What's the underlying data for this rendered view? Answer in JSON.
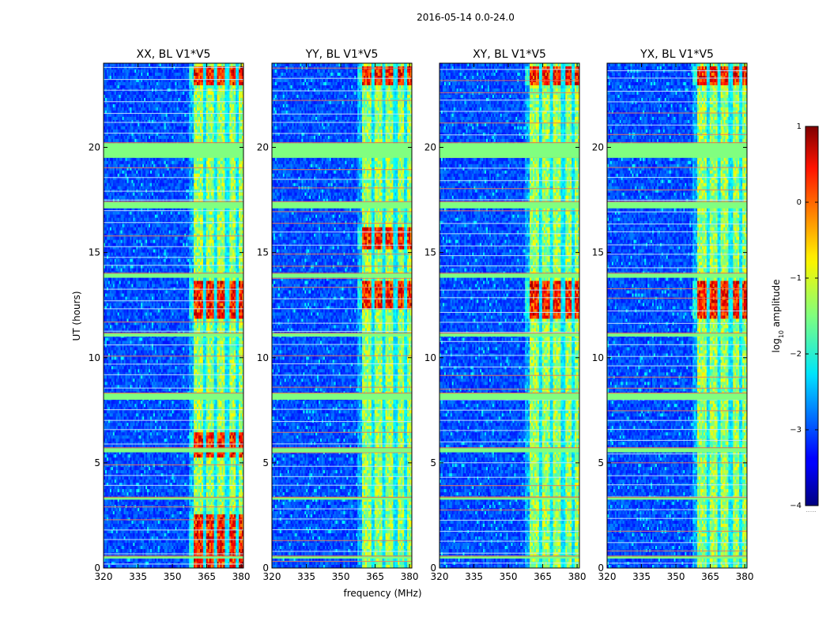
{
  "suptitle": "2016-05-14 0.0-24.0",
  "xlabel": "frequency (MHz)",
  "ylabel": "UT (hours)",
  "colorbar_label": "log10 amplitude",
  "colorbar_label_base": "log",
  "colorbar_label_sub": "10",
  "colorbar_label_rest": " amplitude",
  "colorbar_ticks": [
    "1",
    "0",
    "−1",
    "−2",
    "−3",
    "−4"
  ],
  "colorbar_dots": "......",
  "chart_data": {
    "type": "heatmap",
    "colormap": "jet",
    "color_range": [
      -4,
      1
    ],
    "x_range": [
      320,
      381
    ],
    "y_range": [
      0,
      24
    ],
    "x_ticks": [
      "320",
      "335",
      "350",
      "365",
      "380"
    ],
    "y_ticks": [
      "0",
      "5",
      "10",
      "15",
      "20"
    ],
    "x_tick_values": [
      320,
      335,
      350,
      365,
      380
    ],
    "y_tick_values": [
      0,
      5,
      10,
      15,
      20
    ],
    "panels": [
      {
        "title": "XX, BL V1*V5",
        "band_start_mhz": 359,
        "strong_hours": [
          [
            0.0,
            2.6
          ],
          [
            5.3,
            6.5
          ],
          [
            11.8,
            13.6
          ],
          [
            22.9,
            23.9
          ]
        ]
      },
      {
        "title": "YY, BL V1*V5",
        "band_start_mhz": 359,
        "strong_hours": [
          [
            12.3,
            13.6
          ],
          [
            15.2,
            16.2
          ],
          [
            22.9,
            23.9
          ]
        ]
      },
      {
        "title": "XY, BL V1*V5",
        "band_start_mhz": 359,
        "strong_hours": [
          [
            11.8,
            13.6
          ],
          [
            22.9,
            23.9
          ]
        ]
      },
      {
        "title": "YX, BL V1*V5",
        "band_start_mhz": 359,
        "strong_hours": [
          [
            11.8,
            13.6
          ],
          [
            22.9,
            23.9
          ]
        ]
      }
    ],
    "flagged_hours": [
      [
        19.5,
        20.2
      ],
      [
        17.1,
        17.4
      ],
      [
        8.0,
        8.3
      ],
      [
        5.5,
        5.7
      ],
      [
        0.45,
        0.55
      ],
      [
        13.8,
        14.0
      ],
      [
        11.0,
        11.15
      ],
      [
        3.25,
        3.35
      ]
    ],
    "rfi_channels_mhz": [
      364,
      369,
      374,
      378.5
    ]
  }
}
